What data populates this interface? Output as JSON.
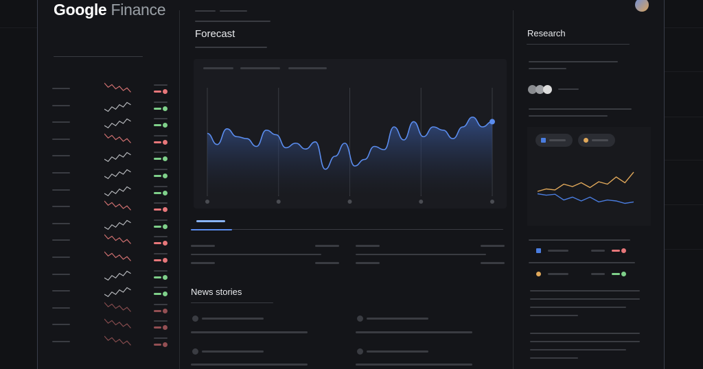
{
  "header": {
    "logo_primary": "Google",
    "logo_secondary": "Finance"
  },
  "forecast": {
    "title": "Forecast",
    "accent": "#5b8def",
    "line_values": [
      70,
      53,
      77,
      65,
      62,
      50,
      75,
      68,
      48,
      55,
      46,
      57,
      15,
      35,
      55,
      20,
      30,
      50,
      45,
      80,
      60,
      88,
      65,
      80,
      75,
      62,
      80,
      95,
      80,
      88
    ]
  },
  "news": {
    "title": "News stories"
  },
  "research": {
    "title": "Research",
    "series_colors": {
      "blue": "#4a7de0",
      "orange": "#e0a85a"
    },
    "orange_values": [
      30,
      35,
      33,
      45,
      40,
      48,
      38,
      50,
      45,
      60,
      48,
      70
    ],
    "blue_values": [
      25,
      22,
      24,
      12,
      18,
      10,
      18,
      8,
      12,
      10,
      5,
      8
    ]
  },
  "watchlist": {
    "trends": [
      "down",
      "up",
      "up",
      "down",
      "up",
      "up",
      "up",
      "down",
      "up",
      "down",
      "down",
      "up",
      "up",
      "down",
      "down",
      "down"
    ],
    "colors": {
      "up": "#7fd08a",
      "down": "#e7777a"
    }
  }
}
